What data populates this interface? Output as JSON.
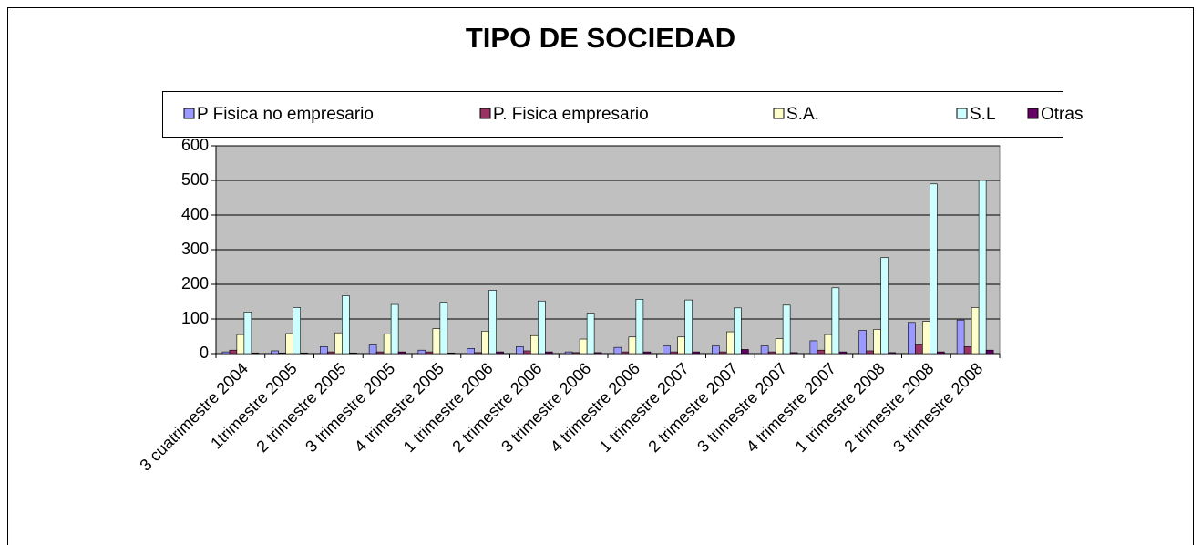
{
  "chart_data": {
    "type": "bar",
    "title": "TIPO DE SOCIEDAD",
    "categories": [
      "3 cuatrimestre 2004",
      "1trimestre 2005",
      "2 trimestre 2005",
      "3 trimestre 2005",
      "4 trimestre 2005",
      "1 trimestre 2006",
      "2 trimestre 2006",
      "3 trimestre 2006",
      "4 trimestre 2006",
      "1 trimestre 2007",
      "2 trimestre 2007",
      "3 trimestre 2007",
      "4 trimestre 2007",
      "1 trimestre 2008",
      "2 trimestre 2008",
      "3 trimestre 2008"
    ],
    "series": [
      {
        "name": "P Fisica no empresario",
        "color": "#9999ff",
        "values": [
          5,
          8,
          20,
          25,
          10,
          15,
          20,
          5,
          18,
          22,
          22,
          22,
          37,
          67,
          90,
          97
        ]
      },
      {
        "name": "P. Fisica empresario",
        "color": "#993366",
        "values": [
          10,
          2,
          5,
          5,
          5,
          3,
          8,
          3,
          5,
          5,
          5,
          5,
          10,
          8,
          25,
          20
        ]
      },
      {
        "name": "S.A.",
        "color": "#ffffcc",
        "values": [
          55,
          58,
          60,
          57,
          72,
          65,
          52,
          42,
          48,
          48,
          63,
          43,
          55,
          70,
          93,
          133
        ]
      },
      {
        "name": "S.L",
        "color": "#ccffff",
        "values": [
          120,
          133,
          167,
          142,
          148,
          183,
          152,
          117,
          157,
          155,
          132,
          140,
          190,
          277,
          490,
          500
        ]
      },
      {
        "name": "Otras",
        "color": "#660066",
        "values": [
          2,
          2,
          2,
          5,
          2,
          5,
          5,
          3,
          5,
          5,
          12,
          3,
          5,
          3,
          5,
          10
        ]
      }
    ],
    "ylim": [
      0,
      600
    ],
    "yticks": [
      0,
      100,
      200,
      300,
      400,
      500,
      600
    ],
    "grid": true,
    "legend": "top"
  }
}
